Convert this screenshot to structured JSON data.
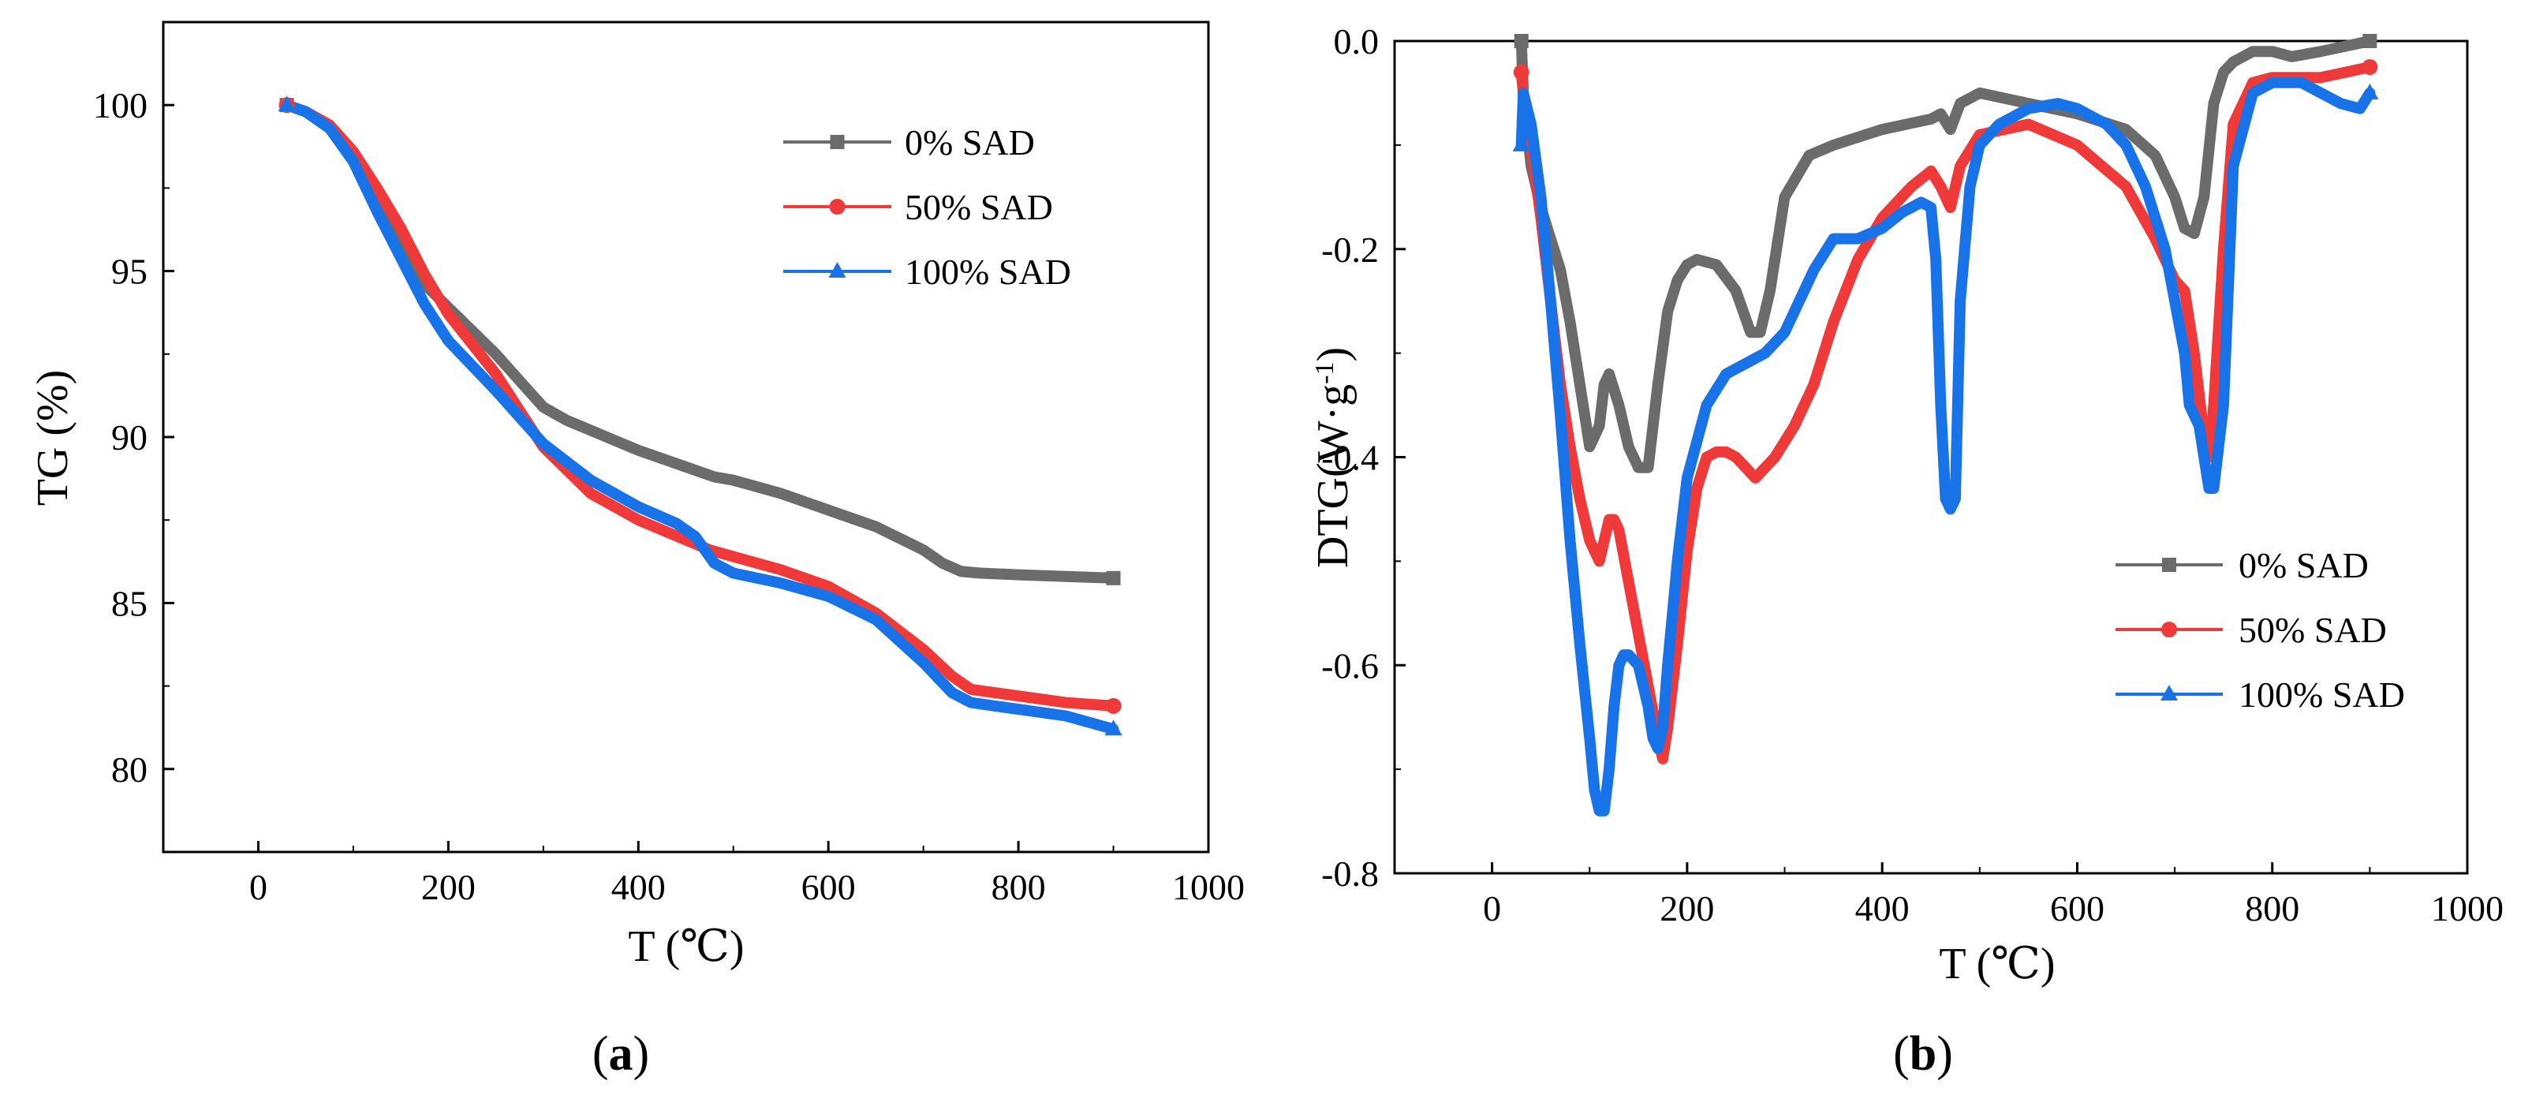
{
  "figure": {
    "panels": [
      {
        "label_open": "(",
        "label_letter": "a",
        "label_close": ")"
      },
      {
        "label_open": "(",
        "label_letter": "b",
        "label_close": ")"
      }
    ]
  },
  "chart_data": [
    {
      "type": "line",
      "panel": "a",
      "title": "",
      "xlabel": "T (℃)",
      "ylabel": "TG (%)",
      "xlim": [
        -100,
        1000
      ],
      "ylim": [
        77.5,
        102.5
      ],
      "xticks": [
        0,
        200,
        400,
        600,
        800,
        1000
      ],
      "yticks": [
        80,
        85,
        90,
        95,
        100
      ],
      "xtick_labels": [
        "0",
        "200",
        "400",
        "600",
        "800",
        "1000"
      ],
      "ytick_labels": [
        "80",
        "85",
        "90",
        "95",
        "100"
      ],
      "grid": false,
      "legend_position": "top-right",
      "series": [
        {
          "name": "0% SAD",
          "color": "#6b6b6b",
          "marker": "square",
          "x": [
            30,
            50,
            75,
            100,
            125,
            150,
            175,
            200,
            225,
            250,
            275,
            300,
            325,
            350,
            400,
            450,
            480,
            500,
            550,
            600,
            650,
            700,
            720,
            740,
            760,
            800,
            850,
            900
          ],
          "y": [
            100,
            99.8,
            99.3,
            98.4,
            97.0,
            95.7,
            94.6,
            93.9,
            93.2,
            92.5,
            91.7,
            90.9,
            90.5,
            90.2,
            89.6,
            89.1,
            88.8,
            88.7,
            88.3,
            87.8,
            87.3,
            86.6,
            86.2,
            85.95,
            85.9,
            85.85,
            85.8,
            85.75
          ]
        },
        {
          "name": "50% SAD",
          "color": "#f03a3a",
          "marker": "circle",
          "x": [
            30,
            50,
            75,
            100,
            125,
            150,
            175,
            200,
            250,
            300,
            350,
            400,
            450,
            475,
            500,
            550,
            600,
            650,
            700,
            730,
            750,
            800,
            850,
            900
          ],
          "y": [
            100,
            99.8,
            99.4,
            98.6,
            97.5,
            96.3,
            94.9,
            93.7,
            91.9,
            89.7,
            88.3,
            87.5,
            86.9,
            86.6,
            86.4,
            86.0,
            85.5,
            84.7,
            83.6,
            82.8,
            82.4,
            82.2,
            82.0,
            81.9
          ]
        },
        {
          "name": "100% SAD",
          "color": "#1873e8",
          "marker": "triangle",
          "x": [
            30,
            50,
            75,
            100,
            125,
            150,
            175,
            200,
            250,
            300,
            350,
            400,
            440,
            460,
            480,
            500,
            550,
            600,
            650,
            700,
            730,
            750,
            800,
            850,
            900
          ],
          "y": [
            100,
            99.8,
            99.3,
            98.3,
            96.8,
            95.4,
            94.0,
            92.9,
            91.4,
            89.8,
            88.7,
            87.9,
            87.4,
            87.0,
            86.2,
            85.9,
            85.6,
            85.2,
            84.5,
            83.2,
            82.3,
            82.0,
            81.8,
            81.6,
            81.2
          ]
        }
      ]
    },
    {
      "type": "line",
      "panel": "b",
      "title": "",
      "xlabel": "T (℃)",
      "ylabel": "DTG(W·g",
      "ylabel_superscript": "-1",
      "ylabel_close": ")",
      "xlim": [
        -100,
        1000
      ],
      "ylim": [
        -0.8,
        0.0
      ],
      "xticks": [
        0,
        200,
        400,
        600,
        800,
        1000
      ],
      "yticks": [
        -0.8,
        -0.6,
        -0.4,
        -0.2,
        0.0
      ],
      "xtick_labels": [
        "0",
        "200",
        "400",
        "600",
        "800",
        "1000"
      ],
      "ytick_labels": [
        "-0.8",
        "-0.6",
        "-0.4",
        "-0.2",
        "0.0"
      ],
      "grid": false,
      "legend_position": "bottom-right",
      "series": [
        {
          "name": "0% SAD",
          "color": "#6b6b6b",
          "marker": "square",
          "x": [
            30,
            32,
            40,
            50,
            60,
            70,
            80,
            90,
            100,
            110,
            115,
            120,
            130,
            140,
            150,
            160,
            170,
            180,
            190,
            200,
            210,
            230,
            250,
            265,
            275,
            285,
            300,
            325,
            350,
            400,
            450,
            460,
            470,
            480,
            500,
            550,
            600,
            650,
            680,
            700,
            710,
            720,
            730,
            740,
            750,
            760,
            780,
            800,
            820,
            850,
            900
          ],
          "y": [
            0.0,
            -0.05,
            -0.12,
            -0.16,
            -0.19,
            -0.22,
            -0.27,
            -0.33,
            -0.39,
            -0.37,
            -0.33,
            -0.32,
            -0.35,
            -0.39,
            -0.41,
            -0.41,
            -0.33,
            -0.26,
            -0.23,
            -0.215,
            -0.21,
            -0.215,
            -0.24,
            -0.28,
            -0.28,
            -0.24,
            -0.15,
            -0.11,
            -0.1,
            -0.085,
            -0.075,
            -0.07,
            -0.085,
            -0.06,
            -0.05,
            -0.06,
            -0.07,
            -0.085,
            -0.11,
            -0.15,
            -0.18,
            -0.185,
            -0.15,
            -0.06,
            -0.03,
            -0.02,
            -0.01,
            -0.01,
            -0.015,
            -0.01,
            0.0
          ]
        },
        {
          "name": "50% SAD",
          "color": "#f03a3a",
          "marker": "circle",
          "x": [
            30,
            32,
            40,
            50,
            60,
            70,
            80,
            90,
            100,
            110,
            115,
            120,
            125,
            130,
            140,
            150,
            160,
            170,
            175,
            180,
            190,
            200,
            210,
            220,
            230,
            240,
            250,
            260,
            270,
            290,
            310,
            330,
            350,
            375,
            400,
            430,
            450,
            460,
            470,
            480,
            500,
            550,
            600,
            650,
            680,
            700,
            710,
            720,
            730,
            735,
            740,
            750,
            760,
            780,
            800,
            850,
            900
          ],
          "y": [
            -0.03,
            -0.05,
            -0.1,
            -0.17,
            -0.25,
            -0.33,
            -0.39,
            -0.44,
            -0.48,
            -0.5,
            -0.48,
            -0.46,
            -0.46,
            -0.47,
            -0.52,
            -0.57,
            -0.62,
            -0.67,
            -0.69,
            -0.66,
            -0.58,
            -0.49,
            -0.43,
            -0.4,
            -0.395,
            -0.395,
            -0.4,
            -0.41,
            -0.42,
            -0.4,
            -0.37,
            -0.33,
            -0.27,
            -0.21,
            -0.17,
            -0.14,
            -0.125,
            -0.14,
            -0.16,
            -0.12,
            -0.09,
            -0.08,
            -0.1,
            -0.14,
            -0.19,
            -0.23,
            -0.24,
            -0.3,
            -0.38,
            -0.4,
            -0.35,
            -0.2,
            -0.08,
            -0.04,
            -0.035,
            -0.035,
            -0.025
          ]
        },
        {
          "name": "100% SAD",
          "color": "#1873e8",
          "marker": "triangle",
          "x": [
            30,
            32,
            40,
            50,
            60,
            70,
            80,
            90,
            100,
            105,
            110,
            115,
            120,
            125,
            130,
            135,
            140,
            150,
            160,
            165,
            170,
            175,
            180,
            190,
            200,
            220,
            240,
            260,
            280,
            300,
            330,
            350,
            375,
            400,
            420,
            440,
            450,
            455,
            460,
            465,
            470,
            475,
            480,
            490,
            500,
            520,
            550,
            580,
            600,
            630,
            650,
            670,
            690,
            700,
            710,
            715,
            720,
            725,
            730,
            735,
            740,
            750,
            760,
            780,
            800,
            830,
            850,
            870,
            890,
            900
          ],
          "y": [
            -0.1,
            -0.05,
            -0.08,
            -0.15,
            -0.25,
            -0.36,
            -0.48,
            -0.58,
            -0.67,
            -0.72,
            -0.74,
            -0.74,
            -0.7,
            -0.64,
            -0.6,
            -0.59,
            -0.59,
            -0.6,
            -0.64,
            -0.67,
            -0.68,
            -0.66,
            -0.6,
            -0.5,
            -0.42,
            -0.35,
            -0.32,
            -0.31,
            -0.3,
            -0.28,
            -0.22,
            -0.19,
            -0.19,
            -0.18,
            -0.165,
            -0.155,
            -0.16,
            -0.21,
            -0.35,
            -0.44,
            -0.45,
            -0.44,
            -0.25,
            -0.14,
            -0.1,
            -0.08,
            -0.065,
            -0.06,
            -0.065,
            -0.08,
            -0.1,
            -0.14,
            -0.2,
            -0.25,
            -0.3,
            -0.35,
            -0.36,
            -0.37,
            -0.4,
            -0.43,
            -0.43,
            -0.35,
            -0.12,
            -0.05,
            -0.04,
            -0.04,
            -0.05,
            -0.06,
            -0.065,
            -0.05
          ]
        }
      ]
    }
  ]
}
